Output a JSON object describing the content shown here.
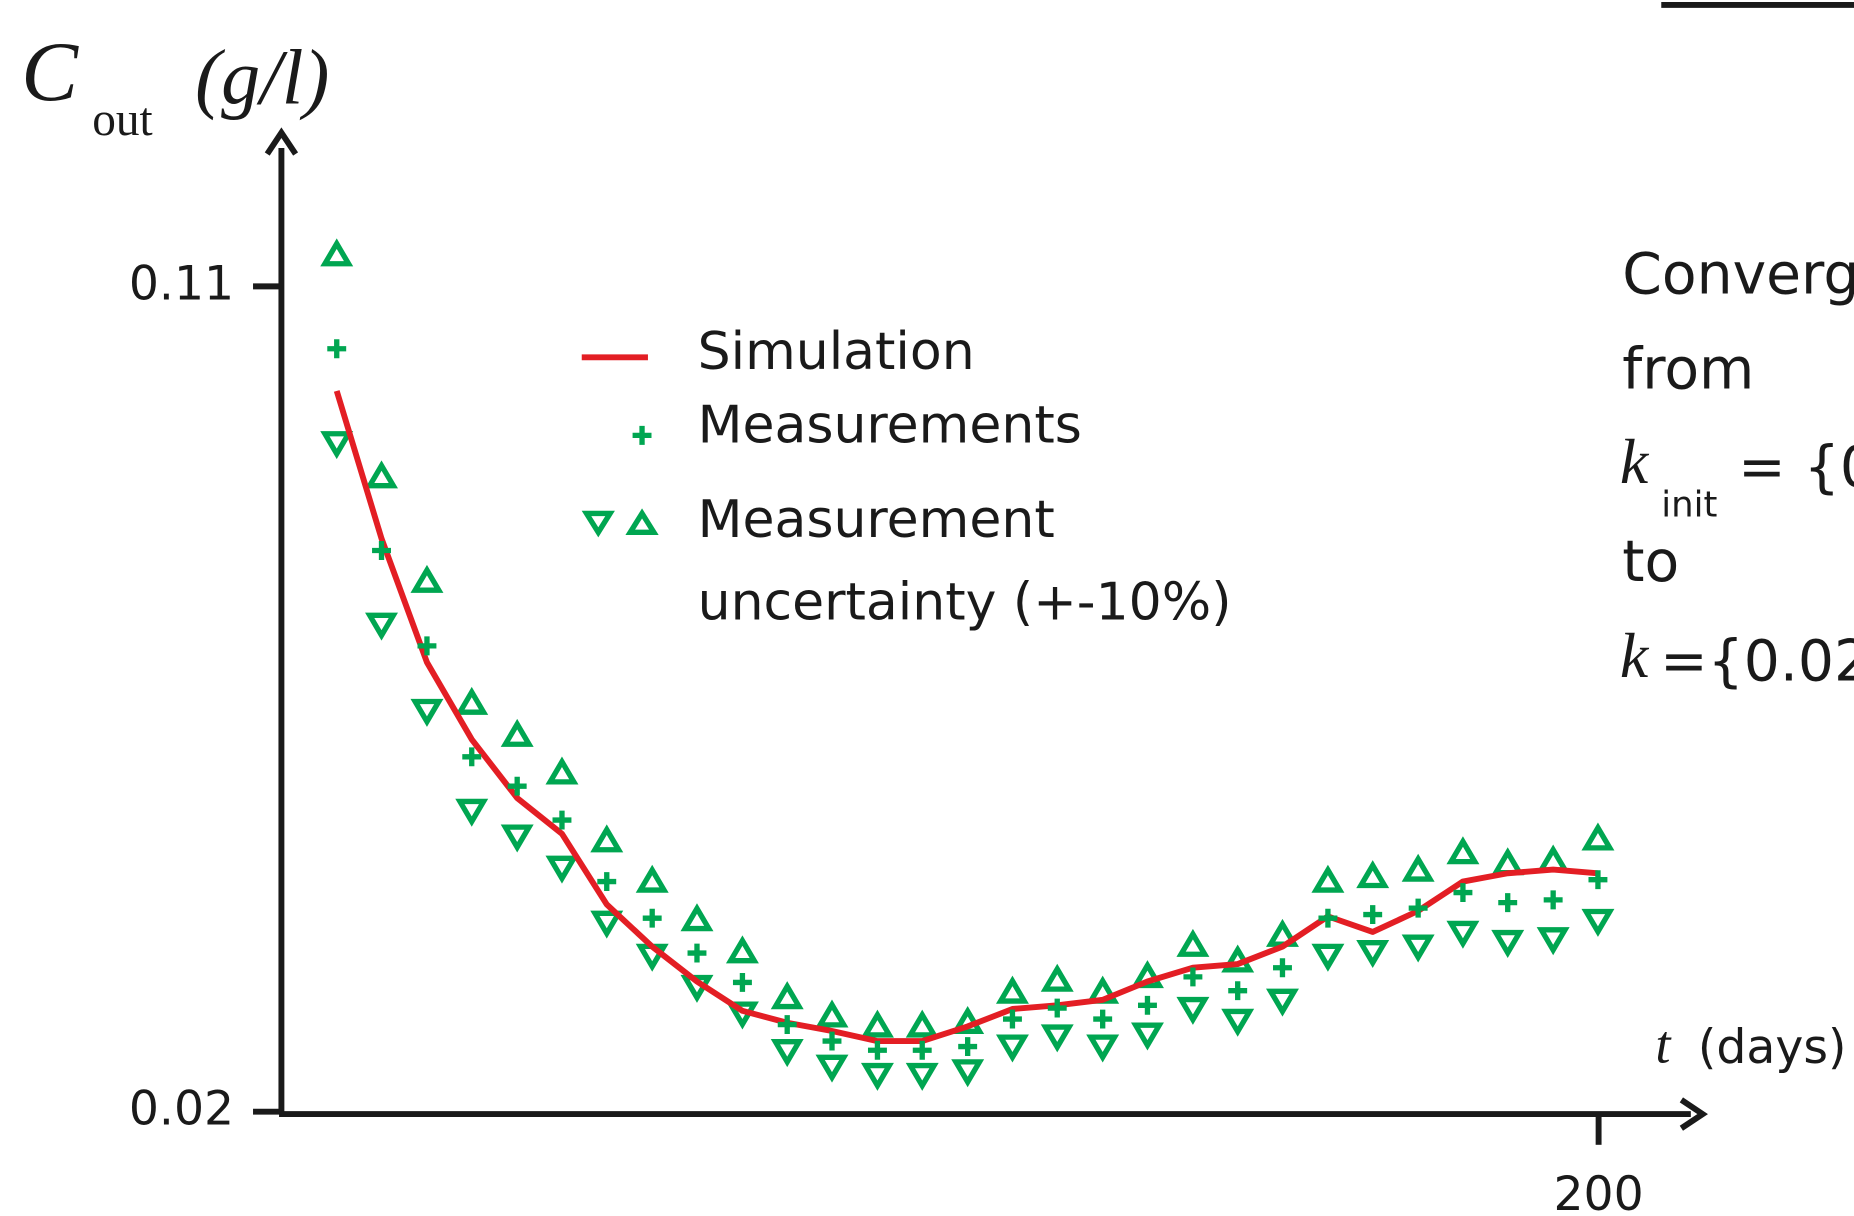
{
  "chart_data": {
    "type": "line",
    "y_label": {
      "symbol": "C",
      "subscript": "out",
      "unit": "(g/l)"
    },
    "x_label": {
      "symbol": "t",
      "unit": "(days)"
    },
    "x": [
      8.4,
      15.2,
      22.1,
      28.9,
      35.8,
      42.6,
      49.4,
      56.3,
      63.1,
      70.0,
      76.8,
      83.6,
      90.5,
      97.3,
      104.2,
      111.0,
      117.8,
      124.7,
      131.5,
      138.4,
      145.2,
      152.0,
      158.9,
      165.7,
      172.6,
      179.4,
      186.2,
      193.1,
      199.9
    ],
    "series": [
      {
        "name": "Simulation",
        "color": "#e31e24",
        "marker": "line",
        "values": [
          0.0986,
          0.0825,
          0.069,
          0.0606,
          0.0542,
          0.0503,
          0.0426,
          0.038,
          0.0342,
          0.031,
          0.0297,
          0.0288,
          0.0277,
          0.0277,
          0.0293,
          0.0312,
          0.0316,
          0.0322,
          0.0342,
          0.0357,
          0.0361,
          0.038,
          0.0413,
          0.0396,
          0.0419,
          0.0451,
          0.046,
          0.0464,
          0.046
        ]
      },
      {
        "name": "Measurements",
        "color": "#00a651",
        "marker": "plus",
        "values": [
          0.1032,
          0.0812,
          0.0708,
          0.0587,
          0.0555,
          0.0518,
          0.0451,
          0.0411,
          0.0373,
          0.0341,
          0.0295,
          0.0277,
          0.0267,
          0.0267,
          0.0271,
          0.0301,
          0.0313,
          0.0301,
          0.0316,
          0.0347,
          0.0332,
          0.0357,
          0.0411,
          0.0415,
          0.0422,
          0.0439,
          0.0428,
          0.0431,
          0.0453
        ]
      }
    ],
    "uncertainty": {
      "name": [
        "Measurement",
        "uncertainty (+-10%)"
      ],
      "color": "#00a651",
      "upper": [
        0.1135,
        0.0893,
        0.0779,
        0.0646,
        0.0611,
        0.057,
        0.0496,
        0.0452,
        0.041,
        0.0375,
        0.0325,
        0.0305,
        0.0294,
        0.0294,
        0.0298,
        0.0331,
        0.0344,
        0.0331,
        0.0348,
        0.0382,
        0.0365,
        0.0393,
        0.0452,
        0.0457,
        0.0464,
        0.0483,
        0.0471,
        0.0474,
        0.0498
      ],
      "lower": [
        0.0929,
        0.0731,
        0.0637,
        0.0528,
        0.05,
        0.0466,
        0.0406,
        0.037,
        0.0336,
        0.0307,
        0.0266,
        0.0249,
        0.024,
        0.024,
        0.0244,
        0.0271,
        0.0282,
        0.0271,
        0.0284,
        0.0312,
        0.0299,
        0.0321,
        0.037,
        0.0374,
        0.038,
        0.0395,
        0.0385,
        0.0388,
        0.0408
      ]
    },
    "xlim": [
      0,
      200
    ],
    "xticks": [
      200
    ],
    "ylim": [
      0.02,
      0.11
    ],
    "yticks": [
      0.02,
      0.11
    ],
    "annotation": {
      "line1": "Converg",
      "line2": "from",
      "k_init": {
        "symbol": "k",
        "subscript": "init",
        "text": "= {0"
      },
      "line4": "to",
      "k_final": {
        "symbol": "k",
        "text": "={0.02"
      }
    }
  }
}
